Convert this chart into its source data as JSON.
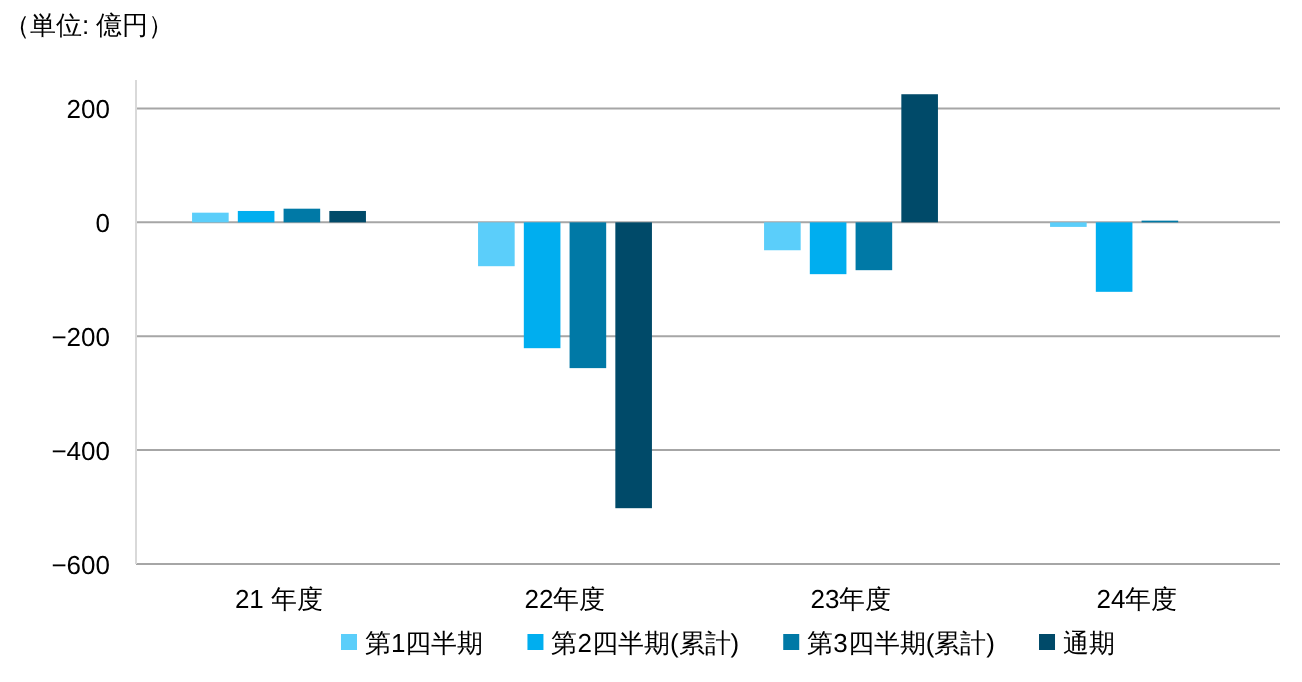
{
  "chart_data": {
    "type": "bar",
    "ylabel": "（単位: 億円）",
    "categories": [
      "21 年度",
      "22年度",
      "23年度",
      "24年度"
    ],
    "series": [
      {
        "name": "第1四半期",
        "color": "#5bcefa",
        "values": [
          17,
          -77,
          -49,
          -8
        ]
      },
      {
        "name": "第2四半期(累計)",
        "color": "#00aeef",
        "values": [
          20,
          -221,
          -91,
          -122
        ]
      },
      {
        "name": "第3四半期(累計)",
        "color": "#0079a6",
        "values": [
          24,
          -256,
          -84,
          3
        ]
      },
      {
        "name": "通期",
        "color": "#004a69",
        "values": [
          20,
          -502,
          225,
          null
        ]
      }
    ],
    "ylim": [
      -600,
      250
    ],
    "yticks": [
      {
        "value": -600,
        "label": "−600"
      },
      {
        "value": -400,
        "label": "−400"
      },
      {
        "value": -200,
        "label": "−200"
      },
      0,
      200
    ],
    "grid": "y",
    "legend": "bottom"
  }
}
